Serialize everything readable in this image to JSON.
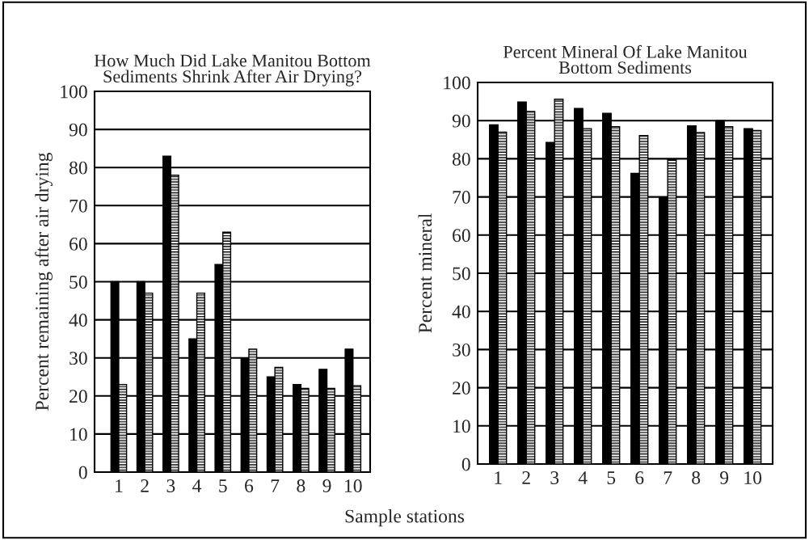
{
  "chart_data": [
    {
      "type": "bar",
      "title": "How Much Did Lake Manitou Bottom\nSediments Shrink After Air Drying?",
      "ylabel": "Percent remaining after air drying",
      "xlabel": "Sample stations",
      "categories": [
        "1",
        "2",
        "3",
        "4",
        "5",
        "6",
        "7",
        "8",
        "9",
        "10"
      ],
      "series": [
        {
          "color": "#000000",
          "values": [
            50,
            50,
            83,
            35,
            54.5,
            30,
            25,
            23,
            27,
            32.3
          ]
        },
        {
          "color": "#000000",
          "values": [
            23,
            47,
            78,
            47,
            63,
            32.3,
            27.5,
            22,
            22,
            22.7
          ]
        }
      ],
      "ylim": [
        0,
        100
      ],
      "yticks": [
        0,
        10,
        20,
        30,
        40,
        50,
        60,
        70,
        80,
        90,
        100
      ],
      "grid": "y"
    },
    {
      "type": "bar",
      "title": "Percent Mineral Of Lake Manitou\nBottom Sediments",
      "ylabel": "Percent mineral",
      "categories": [
        "1",
        "2",
        "3",
        "4",
        "5",
        "6",
        "7",
        "8",
        "9",
        "10"
      ],
      "series": [
        {
          "color": "#000000",
          "values": [
            88.9,
            94.9,
            84.3,
            93.2,
            91.9,
            76.2,
            70,
            88.6,
            90,
            87.9
          ]
        },
        {
          "color": "#000000",
          "values": [
            87,
            92.4,
            95.6,
            87.9,
            88.4,
            86.1,
            79.8,
            86.9,
            88.4,
            87.4
          ]
        }
      ],
      "ylim": [
        0,
        100
      ],
      "yticks": [
        0,
        10,
        20,
        30,
        40,
        50,
        60,
        70,
        80,
        90,
        100
      ],
      "grid": "y"
    }
  ]
}
